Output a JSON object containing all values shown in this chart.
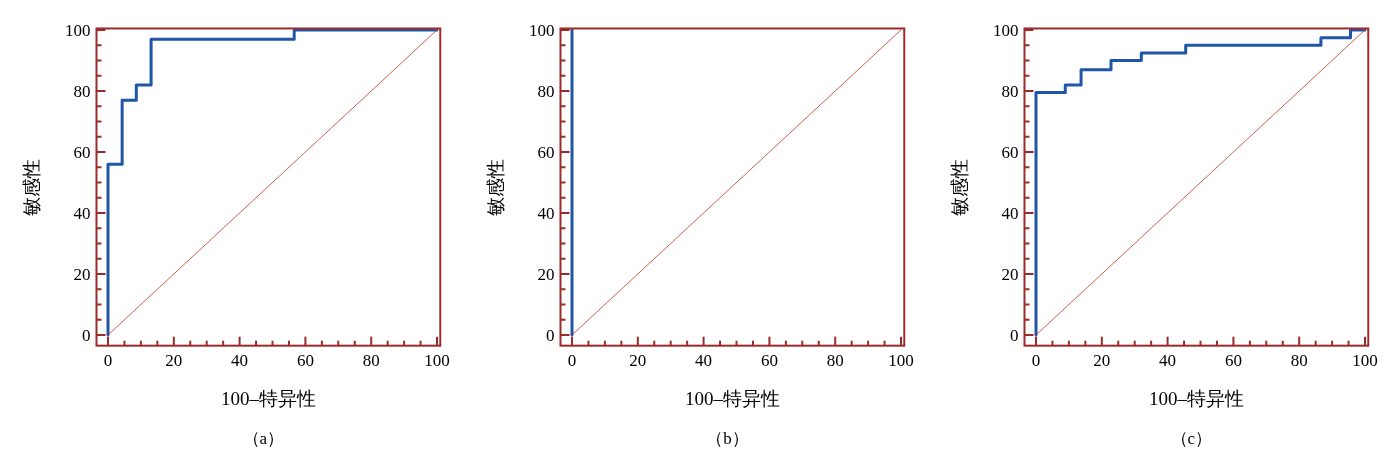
{
  "chart_data": [
    {
      "type": "line",
      "xlabel": "100–特异性",
      "ylabel": "敏感性",
      "annotations": [
        "（a）"
      ],
      "xlim": [
        -3.5,
        101
      ],
      "ylim": [
        -3.5,
        100.5
      ],
      "xticks": [
        0,
        {
          "value": 5,
          "label": null
        },
        {
          "value": 10,
          "label": null
        },
        {
          "value": 15,
          "label": null
        },
        20,
        {
          "value": 25,
          "label": null
        },
        {
          "value": 30,
          "label": null
        },
        {
          "value": 35,
          "label": null
        },
        40,
        {
          "value": 45,
          "label": null
        },
        {
          "value": 50,
          "label": null
        },
        {
          "value": 55,
          "label": null
        },
        60,
        {
          "value": 65,
          "label": null
        },
        {
          "value": 70,
          "label": null
        },
        {
          "value": 75,
          "label": null
        },
        80,
        {
          "value": 85,
          "label": null
        },
        {
          "value": 90,
          "label": null
        },
        {
          "value": 95,
          "label": null
        },
        100
      ],
      "yticks": [
        0,
        {
          "value": 5,
          "label": null
        },
        {
          "value": 10,
          "label": null
        },
        {
          "value": 15,
          "label": null
        },
        20,
        {
          "value": 25,
          "label": null
        },
        {
          "value": 30,
          "label": null
        },
        {
          "value": 35,
          "label": null
        },
        40,
        {
          "value": 45,
          "label": null
        },
        {
          "value": 50,
          "label": null
        },
        {
          "value": 55,
          "label": null
        },
        60,
        {
          "value": 65,
          "label": null
        },
        {
          "value": 70,
          "label": null
        },
        {
          "value": 75,
          "label": null
        },
        80,
        {
          "value": 85,
          "label": null
        },
        {
          "value": 90,
          "label": null
        },
        {
          "value": 95,
          "label": null
        },
        100
      ],
      "series": [
        {
          "color": "#1f56a8",
          "x": [
            0,
            0,
            4.3,
            4.3,
            8.6,
            8.6,
            13.1,
            13.1,
            56.6,
            56.6,
            100
          ],
          "values": [
            0,
            56,
            56,
            77,
            77,
            82,
            82,
            97,
            97,
            100,
            100
          ]
        },
        {
          "color": "#c0392b",
          "x": [
            0,
            100
          ],
          "values": [
            0,
            100
          ]
        }
      ]
    },
    {
      "type": "line",
      "xlabel": "100–特异性",
      "ylabel": "敏感性",
      "annotations": [
        "（b）"
      ],
      "xlim": [
        -3.5,
        101
      ],
      "ylim": [
        -3.5,
        100.5
      ],
      "xticks": [
        0,
        {
          "value": 5,
          "label": null
        },
        {
          "value": 10,
          "label": null
        },
        {
          "value": 15,
          "label": null
        },
        20,
        {
          "value": 25,
          "label": null
        },
        {
          "value": 30,
          "label": null
        },
        {
          "value": 35,
          "label": null
        },
        40,
        {
          "value": 45,
          "label": null
        },
        {
          "value": 50,
          "label": null
        },
        {
          "value": 55,
          "label": null
        },
        60,
        {
          "value": 65,
          "label": null
        },
        {
          "value": 70,
          "label": null
        },
        {
          "value": 75,
          "label": null
        },
        80,
        {
          "value": 85,
          "label": null
        },
        {
          "value": 90,
          "label": null
        },
        {
          "value": 95,
          "label": null
        },
        100
      ],
      "yticks": [
        0,
        {
          "value": 5,
          "label": null
        },
        {
          "value": 10,
          "label": null
        },
        {
          "value": 15,
          "label": null
        },
        20,
        {
          "value": 25,
          "label": null
        },
        {
          "value": 30,
          "label": null
        },
        {
          "value": 35,
          "label": null
        },
        40,
        {
          "value": 45,
          "label": null
        },
        {
          "value": 50,
          "label": null
        },
        {
          "value": 55,
          "label": null
        },
        60,
        {
          "value": 65,
          "label": null
        },
        {
          "value": 70,
          "label": null
        },
        {
          "value": 75,
          "label": null
        },
        80,
        {
          "value": 85,
          "label": null
        },
        {
          "value": 90,
          "label": null
        },
        {
          "value": 95,
          "label": null
        },
        100
      ],
      "series": [
        {
          "color": "#1f56a8",
          "x": [
            0,
            0
          ],
          "values": [
            0,
            100
          ]
        },
        {
          "color": "#c0392b",
          "x": [
            0,
            100
          ],
          "values": [
            0,
            100
          ]
        }
      ]
    },
    {
      "type": "line",
      "xlabel": "100–特异性",
      "ylabel": "敏感性",
      "annotations": [
        "（c）"
      ],
      "xlim": [
        -3.5,
        101
      ],
      "ylim": [
        -3.5,
        100.5
      ],
      "xticks": [
        0,
        {
          "value": 5,
          "label": null
        },
        {
          "value": 10,
          "label": null
        },
        {
          "value": 15,
          "label": null
        },
        20,
        {
          "value": 25,
          "label": null
        },
        {
          "value": 30,
          "label": null
        },
        {
          "value": 35,
          "label": null
        },
        40,
        {
          "value": 45,
          "label": null
        },
        {
          "value": 50,
          "label": null
        },
        {
          "value": 55,
          "label": null
        },
        60,
        {
          "value": 65,
          "label": null
        },
        {
          "value": 70,
          "label": null
        },
        {
          "value": 75,
          "label": null
        },
        80,
        {
          "value": 85,
          "label": null
        },
        {
          "value": 90,
          "label": null
        },
        {
          "value": 95,
          "label": null
        },
        100
      ],
      "yticks": [
        0,
        {
          "value": 5,
          "label": null
        },
        {
          "value": 10,
          "label": null
        },
        {
          "value": 15,
          "label": null
        },
        20,
        {
          "value": 25,
          "label": null
        },
        {
          "value": 30,
          "label": null
        },
        {
          "value": 35,
          "label": null
        },
        40,
        {
          "value": 45,
          "label": null
        },
        {
          "value": 50,
          "label": null
        },
        {
          "value": 55,
          "label": null
        },
        60,
        {
          "value": 65,
          "label": null
        },
        {
          "value": 70,
          "label": null
        },
        {
          "value": 75,
          "label": null
        },
        80,
        {
          "value": 85,
          "label": null
        },
        {
          "value": 90,
          "label": null
        },
        {
          "value": 95,
          "label": null
        },
        100
      ],
      "series": [
        {
          "color": "#1f56a8",
          "x": [
            0,
            0,
            8.9,
            8.9,
            13.7,
            13.7,
            22.8,
            22.8,
            32,
            32,
            45.5,
            45.5,
            86.6,
            86.6,
            95.6,
            95.6,
            100
          ],
          "values": [
            0,
            79.5,
            79.5,
            82,
            82,
            87,
            87,
            90,
            90,
            92.5,
            92.5,
            95,
            95,
            97.5,
            97.5,
            100,
            100
          ]
        },
        {
          "color": "#c0392b",
          "x": [
            0,
            100
          ],
          "values": [
            0,
            100
          ]
        }
      ]
    }
  ]
}
